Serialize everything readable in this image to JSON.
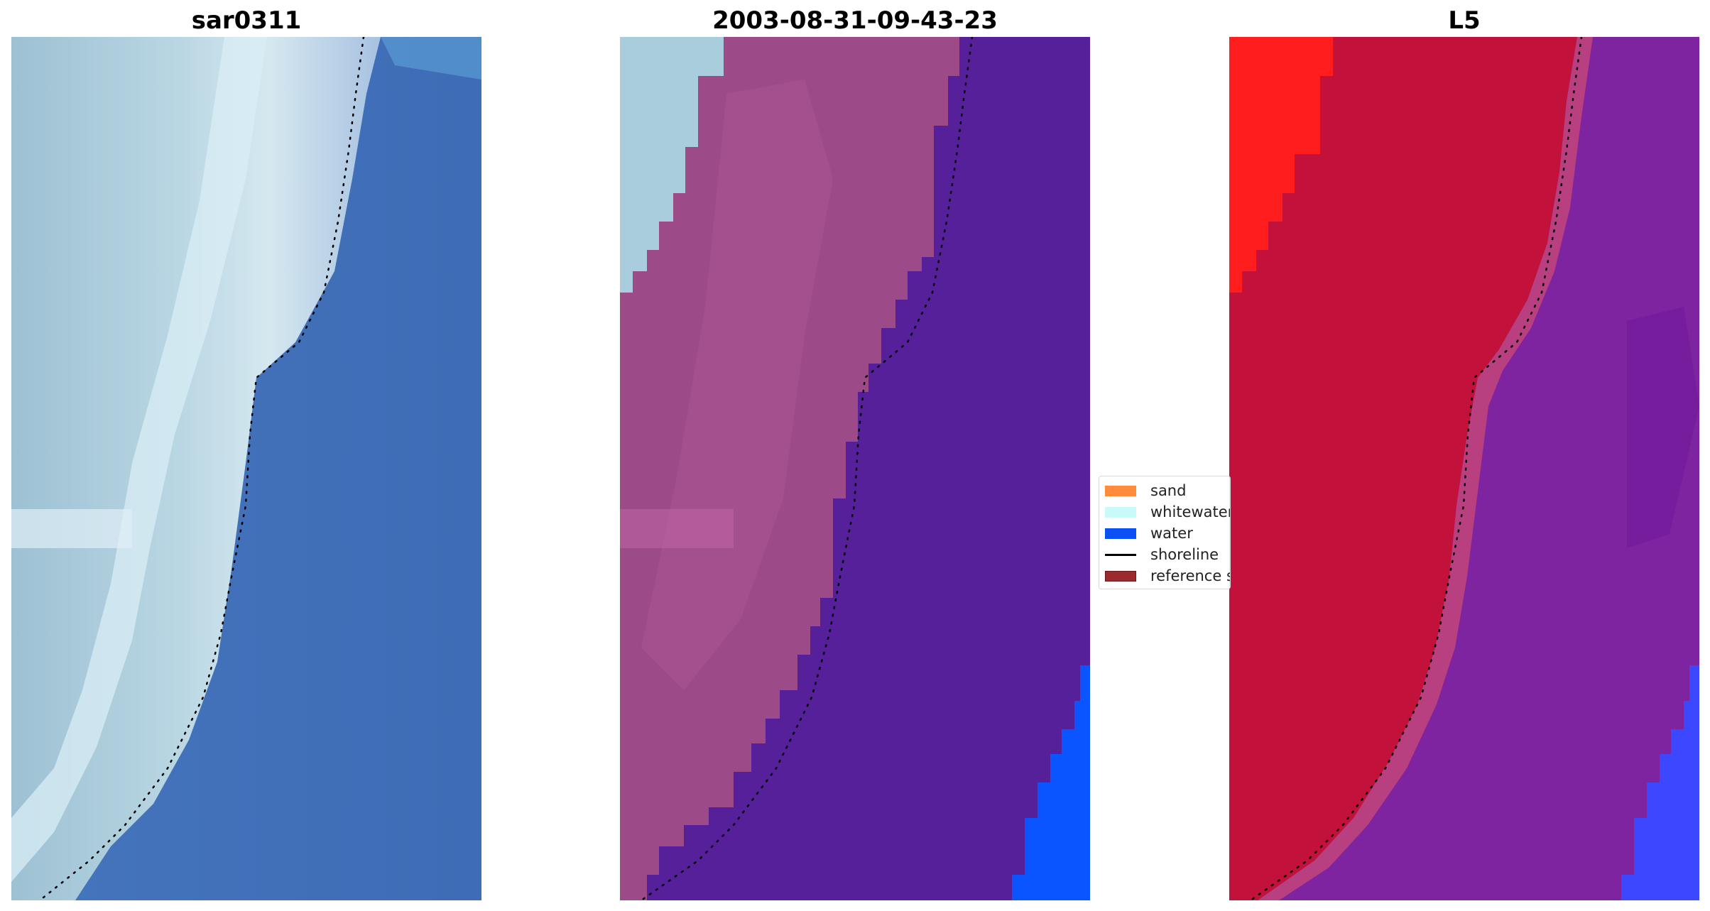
{
  "panels": [
    {
      "title": "sar0311"
    },
    {
      "title": "2003-08-31-09-43-23"
    },
    {
      "title": "L5"
    }
  ],
  "legend": {
    "items": [
      {
        "label": "sand",
        "type": "patch",
        "color": "#ff8c3c"
      },
      {
        "label": "whitewater",
        "type": "patch",
        "color": "#c8fafa"
      },
      {
        "label": "water",
        "type": "patch",
        "color": "#0a50f5"
      },
      {
        "label": "shoreline",
        "type": "line",
        "color": "#000000"
      },
      {
        "label": "reference s",
        "type": "patch",
        "color": "#9b2a2f"
      }
    ]
  },
  "colors": {
    "rgb_sand": "#a9c8d9",
    "rgb_water": "#3f6eb8",
    "classified_land": "#9a4a86",
    "classified_water": "#55209a",
    "classified_whitewater": "#a9cddd",
    "classified_bright_water": "#0a55ff",
    "index_land": "#c2113b",
    "index_water": "#7e24a0",
    "index_bright": "#ff1d1d",
    "index_blue": "#3c48ff"
  }
}
